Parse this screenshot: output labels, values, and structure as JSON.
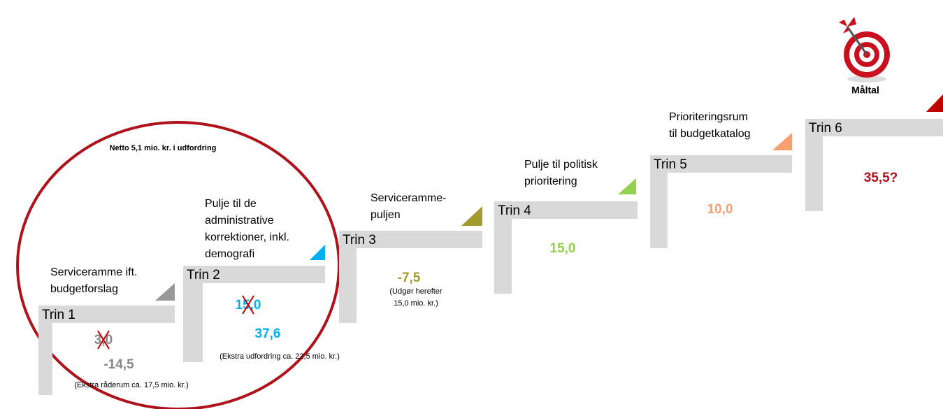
{
  "annotation": "Netto 5,1 mio. kr. i udfordring",
  "target_label": "Måltal",
  "steps": [
    {
      "label": "Trin 1",
      "heading": [
        "Serviceramme ift.",
        "budgetforslag"
      ],
      "old_value": "3,0",
      "value": "-14,5",
      "note": [
        "(Ekstra råderum ca. 17,5 mio. kr.)"
      ]
    },
    {
      "label": "Trin 2",
      "heading": [
        "Pulje til de",
        "administrative",
        "korrektioner, inkl.",
        "demografi"
      ],
      "old_value": "15,0",
      "value": "37,6",
      "note": [
        "(Ekstra udfordring ca. 22,5 mio. kr.)"
      ]
    },
    {
      "label": "Trin 3",
      "heading": [
        "Serviceramme-",
        "puljen"
      ],
      "value": "-7,5",
      "note": [
        "(Udgør herefter",
        "15,0 mio. kr.)"
      ]
    },
    {
      "label": "Trin 4",
      "heading": [
        "Pulje til politisk",
        "prioritering"
      ],
      "value": "15,0"
    },
    {
      "label": "Trin 5",
      "heading": [
        "Prioriteringsrum",
        "til budgetkatalog"
      ],
      "value": "10,0"
    },
    {
      "label": "Trin 6",
      "value": "35,5?"
    }
  ]
}
